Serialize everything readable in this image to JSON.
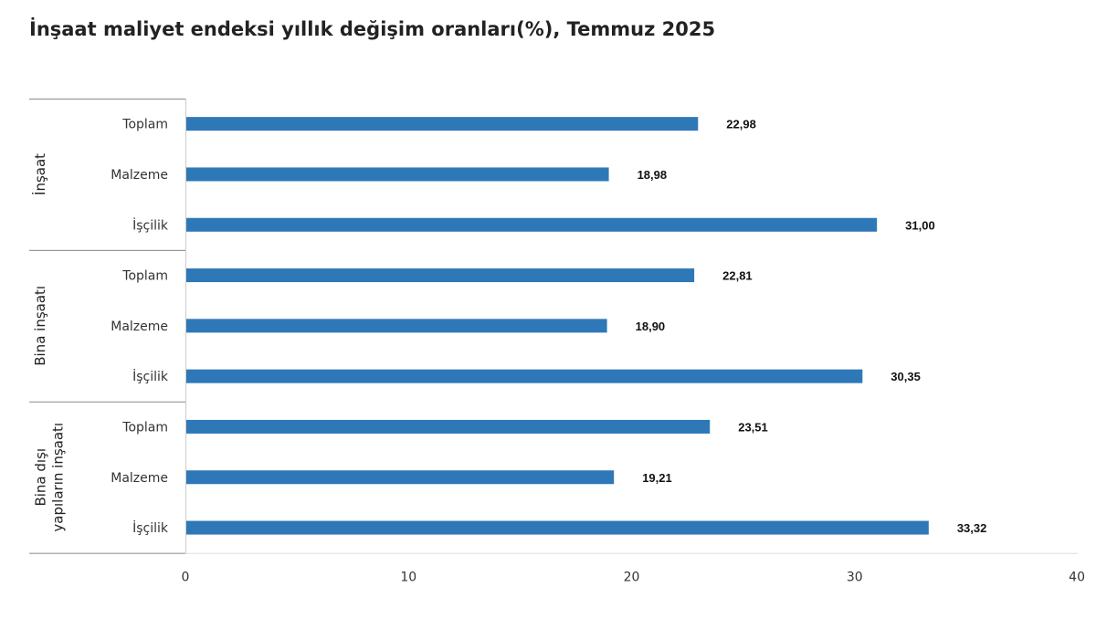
{
  "chart_data": {
    "type": "bar",
    "orientation": "horizontal",
    "title": "İnşaat maliyet endeksi yıllık değişim oranları(%), Temmuz 2025",
    "xlim": [
      0,
      40
    ],
    "xticks": [
      0,
      10,
      20,
      30,
      40
    ],
    "bar_color": "#2e78b7",
    "grid": false,
    "groups": [
      {
        "name": "İnşaat",
        "categories": [
          "Toplam",
          "Malzeme",
          "İşçilik"
        ],
        "values": [
          22.98,
          18.98,
          31.0
        ],
        "value_labels": [
          "22,98",
          "18,98",
          "31,00"
        ]
      },
      {
        "name": "Bina inşaatı",
        "categories": [
          "Toplam",
          "Malzeme",
          "İşçilik"
        ],
        "values": [
          22.81,
          18.9,
          30.35
        ],
        "value_labels": [
          "22,81",
          "18,90",
          "30,35"
        ]
      },
      {
        "name": "Bina dışı yapıların inşaatı",
        "name_lines": [
          "Bina dışı",
          "yapıların inşaatı"
        ],
        "categories": [
          "Toplam",
          "Malzeme",
          "İşçilik"
        ],
        "values": [
          23.51,
          19.21,
          33.32
        ],
        "value_labels": [
          "23,51",
          "19,21",
          "33,32"
        ]
      }
    ]
  }
}
